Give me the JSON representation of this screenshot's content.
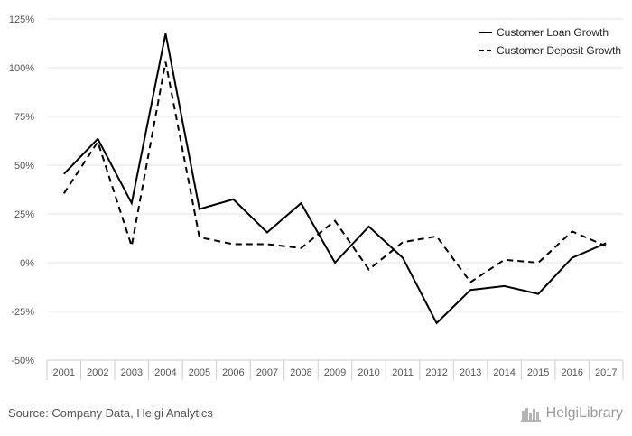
{
  "chart_data": {
    "type": "line",
    "categories": [
      "2001",
      "2002",
      "2003",
      "2004",
      "2005",
      "2006",
      "2007",
      "2008",
      "2009",
      "2010",
      "2011",
      "2012",
      "2013",
      "2014",
      "2015",
      "2016",
      "2017"
    ],
    "series": [
      {
        "name": "Customer Loan Growth",
        "style": "solid",
        "color": "#000000",
        "values": [
          45.5,
          63.5,
          30.5,
          117.5,
          27.5,
          32.5,
          15.5,
          30.5,
          0,
          18.5,
          2.5,
          -31.0,
          -14.0,
          -12.0,
          -16.0,
          2.5,
          10.0
        ]
      },
      {
        "name": "Customer Deposit Growth",
        "style": "dashed",
        "color": "#000000",
        "values": [
          35.5,
          62.0,
          8.5,
          103.0,
          13.0,
          9.5,
          9.5,
          7.5,
          21.5,
          -3.5,
          10.5,
          13.5,
          -10.0,
          1.5,
          0,
          16.0,
          8.5
        ]
      }
    ],
    "yticks": [
      "125%",
      "100%",
      "75%",
      "50%",
      "25%",
      "0%",
      "-25%",
      "-50%"
    ],
    "ylim": [
      -50,
      125
    ],
    "grid": true,
    "legend": "top-right"
  },
  "footer": {
    "source": "Source: Company Data, Helgi Analytics",
    "brand": "HelgiLibrary"
  }
}
